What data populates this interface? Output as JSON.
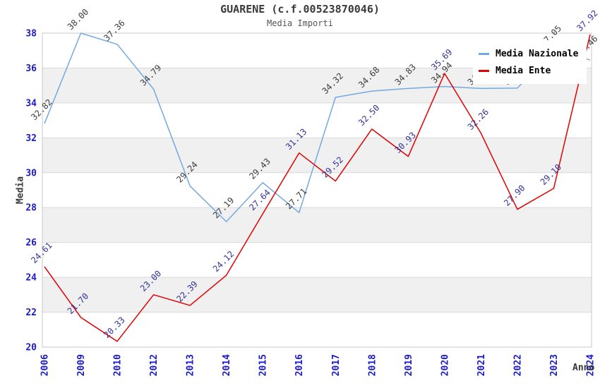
{
  "title": "GUARENE (c.f.00523870046)",
  "subtitle": "Media Importi",
  "chart_data": {
    "type": "line",
    "title": "GUARENE (c.f.00523870046)",
    "subtitle": "Media Importi",
    "xlabel": "Anno",
    "ylabel": "Media",
    "ylim": [
      20,
      38
    ],
    "ytick_step": 2,
    "yticks": [
      20,
      22,
      24,
      26,
      28,
      30,
      32,
      34,
      36,
      38
    ],
    "grid": true,
    "legend_position": "top-right",
    "categories": [
      "2006",
      "2009",
      "2010",
      "2012",
      "2013",
      "2014",
      "2015",
      "2016",
      "2017",
      "2018",
      "2019",
      "2020",
      "2021",
      "2022",
      "2023",
      "2024"
    ],
    "series": [
      {
        "name": "Media Nazionale",
        "color": "#74a9e0",
        "label_color": "#3c3c3c",
        "values": [
          32.82,
          38.0,
          37.36,
          34.79,
          29.24,
          27.19,
          29.43,
          27.71,
          34.32,
          34.68,
          34.83,
          34.94,
          34.83,
          34.85,
          37.05,
          36.46
        ]
      },
      {
        "name": "Media Ente",
        "color": "#e30000",
        "label_color": "#333399",
        "values": [
          24.61,
          21.7,
          20.33,
          23.0,
          22.39,
          24.12,
          27.64,
          31.13,
          29.52,
          32.5,
          30.93,
          35.69,
          32.26,
          27.9,
          29.1,
          37.92
        ]
      }
    ],
    "colors": {
      "tick_label": "#1a1acc",
      "band": "#f0f0f0",
      "gridline": "#d9d9d9",
      "plot_border": "#c8c8c8",
      "title": "#3a3a3a",
      "subtitle": "#555555",
      "axis_title": "#3a3a3a",
      "legend_bg": "#ffffff"
    }
  }
}
